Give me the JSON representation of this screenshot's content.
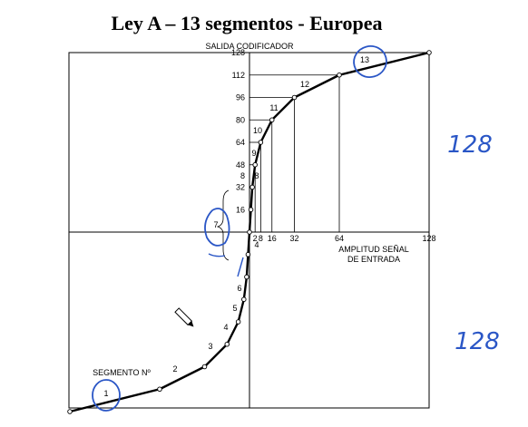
{
  "title": "Ley A – 13 segmentos - Europea",
  "y_axis_label": "SALIDA CODIFICADOR",
  "x_axis_label_line1": "AMPLITUD SEÑAL",
  "x_axis_label_line2": "DE ENTRADA",
  "segment_label": "SEGMENTO Nº",
  "y_ticks": [
    "128",
    "112",
    "96",
    "80",
    "64",
    "48",
    "32",
    "16"
  ],
  "x_ticks": [
    "2",
    "4",
    "8",
    "16",
    "32",
    "64",
    "128"
  ],
  "small_y_ticks": [
    "8"
  ],
  "segments": [
    "1",
    "2",
    "3",
    "4",
    "5",
    "6",
    "7",
    "8",
    "9",
    "10",
    "11",
    "12",
    "13"
  ],
  "bracket_segment": "7",
  "below_axis_segment": "4",
  "annotations": {
    "right_top": "128",
    "right_bottom": "128",
    "pencil": "pencil-icon"
  },
  "colors": {
    "curve": "#000000",
    "ink": "#2a56c6"
  }
}
